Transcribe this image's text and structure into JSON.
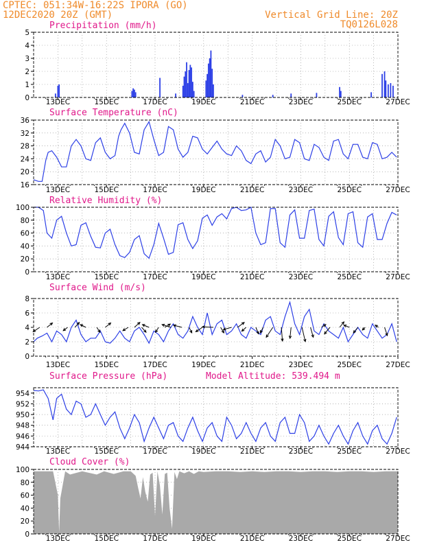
{
  "header": {
    "line1": "CPTEC:  051:34W-16:22S  IPORA (GO)",
    "line2": "12DEC2020 20Z (GMT)",
    "vgrid": "Vertical Grid Line: 20Z",
    "code": "TQ0126L028",
    "model_altitude": "Model Altitude: 539.494 m"
  },
  "colors": {
    "header": "#ef8a2a",
    "title": "#e0188a",
    "series": "#2c3fe6",
    "cloud": "#a9a9a9",
    "grid": "#888888"
  },
  "x_axis": {
    "start": "12DEC2020 20Z",
    "end": "27DEC2020 00Z",
    "tick_labels": [
      "13DEC",
      "15DEC",
      "17DEC",
      "19DEC",
      "21DEC",
      "23DEC",
      "25DEC",
      "27DEC"
    ]
  },
  "chart_data": [
    {
      "type": "bar",
      "title": "Precipitation (mm/h)",
      "ylim": [
        0,
        5
      ],
      "yticks": [
        "0",
        "1",
        "2",
        "3",
        "4",
        "5"
      ],
      "grid": true,
      "bars": [
        [
          12.9,
          0.3
        ],
        [
          13.0,
          0.9
        ],
        [
          13.05,
          1.0
        ],
        [
          16.05,
          0.5
        ],
        [
          16.1,
          0.7
        ],
        [
          16.15,
          0.6
        ],
        [
          16.2,
          0.4
        ],
        [
          17.2,
          1.5
        ],
        [
          17.85,
          0.3
        ],
        [
          18.15,
          0.9
        ],
        [
          18.2,
          1.6
        ],
        [
          18.25,
          2.0
        ],
        [
          18.3,
          2.7
        ],
        [
          18.35,
          1.1
        ],
        [
          18.4,
          2.1
        ],
        [
          18.45,
          2.5
        ],
        [
          18.5,
          2.3
        ],
        [
          18.55,
          1.2
        ],
        [
          18.6,
          0.5
        ],
        [
          19.1,
          1.3
        ],
        [
          19.15,
          1.8
        ],
        [
          19.2,
          2.6
        ],
        [
          19.25,
          3.0
        ],
        [
          19.3,
          3.6
        ],
        [
          19.35,
          2.2
        ],
        [
          19.4,
          1.0
        ],
        [
          20.6,
          0.2
        ],
        [
          21.85,
          0.2
        ],
        [
          22.6,
          0.3
        ],
        [
          23.65,
          0.35
        ],
        [
          24.6,
          0.8
        ],
        [
          24.65,
          0.5
        ],
        [
          25.9,
          0.4
        ],
        [
          26.35,
          1.8
        ],
        [
          26.45,
          2.0
        ],
        [
          26.5,
          1.3
        ],
        [
          26.6,
          1.0
        ],
        [
          26.7,
          1.1
        ],
        [
          26.8,
          0.9
        ]
      ]
    },
    {
      "type": "line",
      "title": "Surface Temperature (nC)",
      "ylim": [
        16,
        36
      ],
      "yticks": [
        "16",
        "20",
        "24",
        "28",
        "32",
        "36"
      ],
      "grid": true,
      "x": [
        12.0,
        12.2,
        12.35,
        12.5,
        12.6,
        12.75,
        12.95,
        13.15,
        13.35,
        13.55,
        13.75,
        13.95,
        14.15,
        14.35,
        14.55,
        14.75,
        14.95,
        15.15,
        15.35,
        15.5,
        15.6,
        15.75,
        15.95,
        16.15,
        16.35,
        16.55,
        16.75,
        16.95,
        17.15,
        17.35,
        17.55,
        17.75,
        17.95,
        18.15,
        18.35,
        18.55,
        18.75,
        18.95,
        19.15,
        19.35,
        19.55,
        19.75,
        19.95,
        20.15,
        20.35,
        20.55,
        20.75,
        20.95,
        21.15,
        21.35,
        21.55,
        21.75,
        21.95,
        22.15,
        22.35,
        22.55,
        22.75,
        22.95,
        23.15,
        23.35,
        23.55,
        23.75,
        23.95,
        24.15,
        24.35,
        24.55,
        24.75,
        24.95,
        25.15,
        25.35,
        25.55,
        25.75,
        25.95,
        26.15,
        26.35,
        26.55,
        26.75,
        26.95
      ],
      "y": [
        17.5,
        17.0,
        17.0,
        23.5,
        26.0,
        26.5,
        24.5,
        21.5,
        21.5,
        28.0,
        30.0,
        28.0,
        24.0,
        23.5,
        29.0,
        30.5,
        26.0,
        24.0,
        25.0,
        31.0,
        33.0,
        35.0,
        32.0,
        26.0,
        25.5,
        33.0,
        35.5,
        30.0,
        25.0,
        26.0,
        34.0,
        33.0,
        27.0,
        24.5,
        26.0,
        31.0,
        30.5,
        27.0,
        25.5,
        27.5,
        29.5,
        27.0,
        25.5,
        25.0,
        28.0,
        26.5,
        23.5,
        22.5,
        25.5,
        26.5,
        23.0,
        24.5,
        30.0,
        28.0,
        24.0,
        24.5,
        30.0,
        29.0,
        24.0,
        23.5,
        28.5,
        27.5,
        24.5,
        23.5,
        29.5,
        30.0,
        25.5,
        24.0,
        28.5,
        28.5,
        24.5,
        24.0,
        29.0,
        28.5,
        24.0,
        24.5,
        26.0,
        24.5
      ]
    },
    {
      "type": "line",
      "title": "Relative Humidity (%)",
      "ylim": [
        0,
        100
      ],
      "yticks": [
        "0",
        "20",
        "40",
        "60",
        "80",
        "100"
      ],
      "grid": true,
      "x": [
        12.0,
        12.2,
        12.4,
        12.55,
        12.75,
        12.95,
        13.15,
        13.35,
        13.55,
        13.75,
        13.95,
        14.15,
        14.35,
        14.55,
        14.75,
        14.95,
        15.15,
        15.35,
        15.55,
        15.75,
        15.95,
        16.15,
        16.35,
        16.55,
        16.75,
        16.95,
        17.15,
        17.35,
        17.55,
        17.75,
        17.95,
        18.15,
        18.35,
        18.55,
        18.75,
        18.95,
        19.15,
        19.35,
        19.55,
        19.75,
        19.95,
        20.15,
        20.35,
        20.55,
        20.75,
        20.95,
        21.15,
        21.35,
        21.55,
        21.75,
        21.95,
        22.15,
        22.35,
        22.55,
        22.75,
        22.95,
        23.15,
        23.35,
        23.55,
        23.75,
        23.95,
        24.15,
        24.35,
        24.55,
        24.75,
        24.95,
        25.15,
        25.35,
        25.55,
        25.75,
        25.95,
        26.15,
        26.35,
        26.55,
        26.75,
        26.95
      ],
      "y": [
        100,
        100,
        95,
        60,
        52,
        80,
        86,
        60,
        40,
        42,
        72,
        76,
        55,
        38,
        37,
        60,
        66,
        42,
        25,
        22,
        30,
        50,
        56,
        28,
        21,
        42,
        75,
        52,
        27,
        30,
        73,
        76,
        50,
        36,
        48,
        83,
        88,
        72,
        85,
        90,
        82,
        98,
        100,
        95,
        96,
        100,
        60,
        42,
        45,
        98,
        98,
        45,
        38,
        88,
        96,
        52,
        52,
        95,
        97,
        50,
        40,
        86,
        93,
        53,
        42,
        90,
        93,
        45,
        38,
        85,
        90,
        50,
        50,
        75,
        92,
        88
      ]
    },
    {
      "type": "line",
      "title": "Surface Wind (m/s)",
      "ylim": [
        0,
        8
      ],
      "yticks": [
        "0",
        "2",
        "4",
        "6",
        "8"
      ],
      "grid": true,
      "x": [
        12.0,
        12.15,
        12.35,
        12.55,
        12.75,
        12.95,
        13.15,
        13.35,
        13.55,
        13.75,
        13.95,
        14.15,
        14.35,
        14.55,
        14.75,
        14.95,
        15.15,
        15.35,
        15.55,
        15.75,
        15.95,
        16.15,
        16.35,
        16.55,
        16.75,
        16.95,
        17.15,
        17.35,
        17.55,
        17.75,
        17.95,
        18.15,
        18.35,
        18.55,
        18.75,
        18.95,
        19.15,
        19.35,
        19.55,
        19.75,
        19.95,
        20.15,
        20.35,
        20.55,
        20.75,
        20.95,
        21.15,
        21.35,
        21.55,
        21.75,
        21.95,
        22.15,
        22.35,
        22.55,
        22.75,
        22.95,
        23.15,
        23.35,
        23.55,
        23.75,
        23.95,
        24.15,
        24.35,
        24.55,
        24.75,
        24.95,
        25.15,
        25.35,
        25.55,
        25.75,
        25.95,
        26.15,
        26.35,
        26.55,
        26.75,
        26.95
      ],
      "y": [
        2.0,
        2.5,
        2.8,
        3.2,
        2.0,
        3.5,
        3.0,
        2.0,
        4.0,
        5.0,
        3.0,
        2.0,
        2.5,
        2.5,
        3.5,
        2.0,
        1.8,
        2.5,
        3.5,
        2.5,
        2.0,
        3.5,
        4.0,
        3.0,
        1.8,
        3.5,
        3.0,
        2.0,
        3.5,
        4.5,
        3.0,
        2.5,
        3.5,
        5.5,
        4.0,
        3.0,
        6.0,
        3.0,
        4.5,
        5.0,
        3.0,
        3.5,
        4.5,
        3.0,
        2.5,
        4.0,
        3.5,
        3.0,
        5.0,
        5.5,
        3.5,
        3.0,
        5.5,
        7.5,
        4.5,
        3.0,
        5.5,
        6.5,
        3.5,
        3.0,
        4.5,
        3.5,
        3.0,
        2.5,
        4.0,
        2.0,
        3.0,
        4.0,
        3.0,
        2.5,
        4.5,
        3.5,
        2.5,
        3.0,
        4.5,
        2.0
      ]
    },
    {
      "type": "line",
      "title": "Surface Pressure (hPa)",
      "ylim": [
        944,
        955
      ],
      "yticks": [
        "944",
        "946",
        "948",
        "950",
        "952",
        "954"
      ],
      "grid": true,
      "x": [
        12.0,
        12.2,
        12.4,
        12.6,
        12.8,
        12.95,
        13.15,
        13.35,
        13.55,
        13.75,
        13.95,
        14.15,
        14.35,
        14.55,
        14.75,
        14.95,
        15.15,
        15.35,
        15.55,
        15.75,
        15.95,
        16.15,
        16.35,
        16.55,
        16.75,
        16.95,
        17.15,
        17.35,
        17.55,
        17.75,
        17.95,
        18.15,
        18.35,
        18.55,
        18.75,
        18.95,
        19.15,
        19.35,
        19.55,
        19.75,
        19.95,
        20.15,
        20.35,
        20.55,
        20.75,
        20.95,
        21.15,
        21.35,
        21.55,
        21.75,
        21.95,
        22.15,
        22.35,
        22.55,
        22.75,
        22.95,
        23.15,
        23.35,
        23.55,
        23.75,
        23.95,
        24.15,
        24.35,
        24.55,
        24.75,
        24.95,
        25.15,
        25.35,
        25.55,
        25.75,
        25.95,
        26.15,
        26.35,
        26.55,
        26.75,
        26.95
      ],
      "y": [
        954.5,
        954.4,
        954.6,
        953.0,
        949.0,
        953.0,
        953.8,
        951.0,
        950.0,
        952.5,
        952.0,
        949.5,
        950.0,
        952.0,
        950.0,
        948.0,
        949.5,
        950.5,
        947.5,
        945.5,
        947.5,
        950.0,
        948.5,
        945.0,
        947.5,
        949.5,
        947.5,
        945.5,
        948.0,
        948.5,
        946.0,
        945.0,
        947.5,
        949.5,
        947.0,
        945.0,
        947.5,
        948.5,
        946.0,
        945.0,
        949.5,
        948.0,
        945.5,
        946.5,
        948.5,
        946.5,
        945.0,
        947.5,
        948.5,
        946.0,
        945.0,
        948.5,
        949.5,
        946.5,
        946.5,
        950.0,
        948.5,
        945.0,
        946.0,
        948.0,
        946.0,
        944.5,
        946.5,
        948.0,
        946.0,
        944.5,
        947.0,
        948.5,
        946.0,
        944.5,
        947.0,
        948.0,
        945.5,
        944.5,
        946.5,
        949.5
      ]
    },
    {
      "type": "area",
      "title": "Cloud Cover (%)",
      "ylim": [
        0,
        100
      ],
      "yticks": [
        "0",
        "20",
        "40",
        "60",
        "80",
        "100"
      ],
      "grid": true,
      "x": [
        12.0,
        12.8,
        13.0,
        13.05,
        13.1,
        13.3,
        13.5,
        14.0,
        14.6,
        14.9,
        15.3,
        15.7,
        16.0,
        16.2,
        16.3,
        16.4,
        16.5,
        16.6,
        16.7,
        16.8,
        16.9,
        17.0,
        17.1,
        17.2,
        17.3,
        17.4,
        17.5,
        17.6,
        17.7,
        17.8,
        17.9,
        18.0,
        18.2,
        18.4,
        18.6,
        18.8,
        19.0,
        19.5,
        20.0,
        20.5,
        21.0,
        21.5,
        22.0,
        22.5,
        23.0,
        23.5,
        24.0,
        24.5,
        25.0,
        25.5,
        26.0,
        26.5,
        27.0
      ],
      "y": [
        97,
        97,
        60,
        2,
        55,
        97,
        92,
        97,
        92,
        97,
        93,
        97,
        97,
        90,
        72,
        55,
        88,
        65,
        50,
        92,
        95,
        28,
        97,
        75,
        30,
        93,
        95,
        40,
        8,
        96,
        85,
        97,
        94,
        97,
        93,
        97,
        96,
        97,
        97,
        96,
        97,
        96,
        97,
        97,
        96,
        97,
        97,
        96,
        97,
        97,
        96,
        97,
        97
      ]
    }
  ],
  "wind_vectors": {
    "x": [
      12.25,
      12.55,
      13.4,
      13.7,
      14.15,
      14.6,
      14.95,
      15.9,
      16.15,
      16.45,
      16.75,
      17.15,
      17.4,
      17.65,
      18.1,
      18.4,
      18.95,
      19.4,
      19.7,
      20.15,
      20.4,
      20.75,
      21.15,
      21.45,
      21.85,
      22.2,
      22.6,
      23.05,
      23.4,
      23.85,
      24.2,
      24.6,
      25.0,
      25.35,
      25.65,
      26.2,
      26.45
    ],
    "u": [
      -1.2,
      1.0,
      -0.8,
      0.8,
      -1.0,
      0.6,
      1.0,
      -1.0,
      1.0,
      0.8,
      -1.2,
      -0.6,
      1.0,
      -1.6,
      -1.5,
      0.5,
      -1.2,
      -2.0,
      0.6,
      -1.5,
      1.2,
      -0.8,
      0.5,
      -0.5,
      -1.2,
      0.2,
      -0.2,
      0.6,
      0.5,
      0.8,
      -1.0,
      0.8,
      -1.0,
      -0.8,
      -0.5,
      -0.6,
      0.5
    ],
    "v": [
      -0.8,
      0.8,
      -0.6,
      0.9,
      0.5,
      -0.9,
      0.8,
      -0.6,
      0.9,
      -0.9,
      0.5,
      -0.9,
      0.6,
      0.5,
      0.4,
      -1.0,
      -0.8,
      0.1,
      -1.0,
      -0.4,
      0.9,
      -0.7,
      -1.2,
      -1.0,
      -1.8,
      -2.5,
      -2.0,
      -2.6,
      -1.8,
      0.5,
      -1.2,
      1.0,
      0.4,
      -1.0,
      -0.5,
      0.4,
      -1.5
    ]
  }
}
